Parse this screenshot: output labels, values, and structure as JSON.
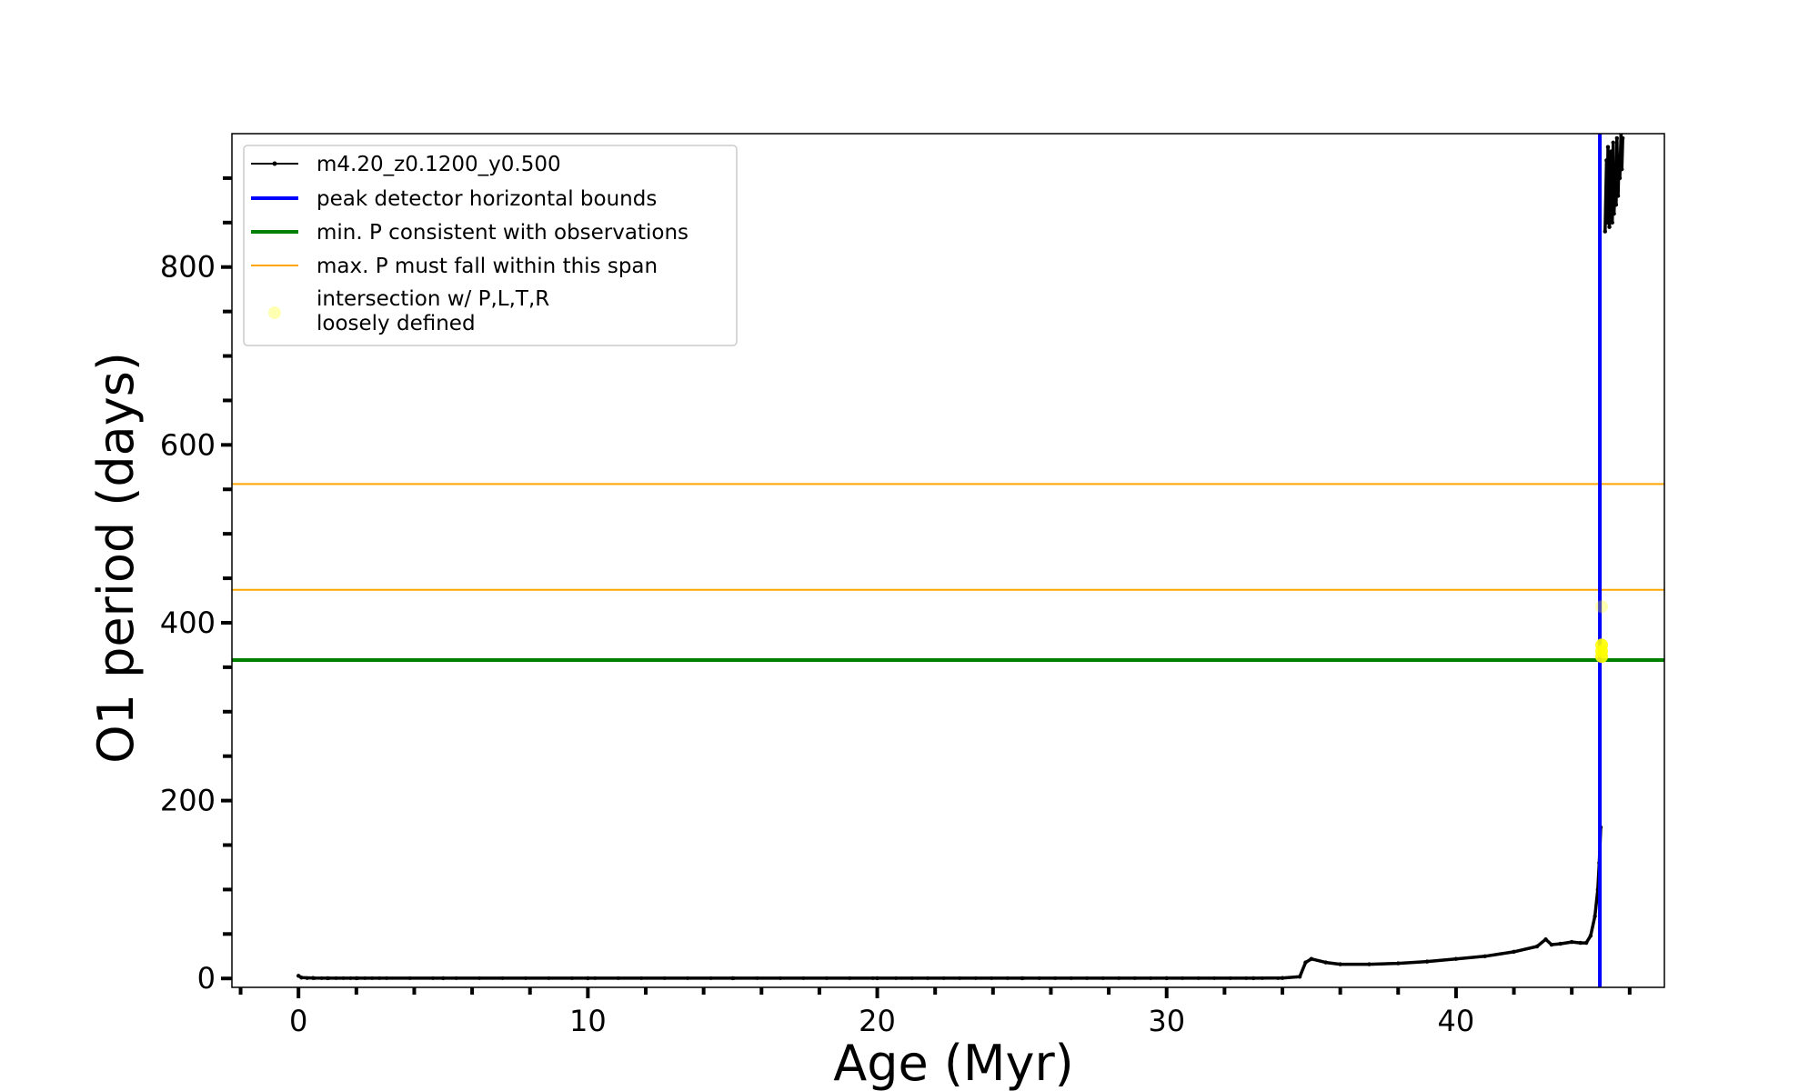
{
  "chart_data": {
    "type": "line",
    "title": "",
    "xlabel": "Age (Myr)",
    "ylabel": "O1 period (days)",
    "xlim": [
      -2.3,
      47.2
    ],
    "ylim": [
      -10,
      950
    ],
    "xticks_major": [
      0,
      10,
      20,
      30,
      40
    ],
    "xtick_labels": [
      "0",
      "10",
      "20",
      "30",
      "40"
    ],
    "xticks_minor": [
      -2,
      2,
      4,
      6,
      8,
      12,
      14,
      16,
      18,
      22,
      24,
      26,
      28,
      32,
      34,
      36,
      38,
      42,
      44,
      46
    ],
    "yticks_major": [
      0,
      200,
      400,
      600,
      800
    ],
    "ytick_labels": [
      "0",
      "200",
      "400",
      "600",
      "800"
    ],
    "yticks_minor": [
      50,
      100,
      150,
      250,
      300,
      350,
      450,
      500,
      550,
      650,
      700,
      750,
      850,
      900
    ],
    "grid": false,
    "legend_position": "top-left",
    "series": [
      {
        "name": "m4.20_z0.1200_y0.500",
        "color": "#000000",
        "style": "line-with-small-markers",
        "x": [
          0.0,
          0.1,
          0.5,
          1.0,
          2.0,
          5.0,
          10.0,
          15.0,
          20.0,
          25.0,
          30.0,
          33.0,
          34.0,
          34.6,
          34.8,
          35.0,
          35.5,
          36.0,
          37.0,
          38.0,
          39.0,
          40.0,
          41.0,
          42.0,
          42.8,
          43.1,
          43.3,
          43.6,
          44.0,
          44.3,
          44.5,
          44.65,
          44.8,
          44.9,
          44.95,
          45.0
        ],
        "y": [
          3,
          1,
          0.5,
          0.3,
          0.3,
          0.3,
          0.3,
          0.3,
          0.3,
          0.3,
          0.3,
          0.3,
          0.5,
          2,
          18,
          22,
          18,
          16,
          16,
          17,
          19,
          22,
          25,
          30,
          36,
          44,
          38,
          39,
          41,
          40,
          40,
          48,
          70,
          100,
          130,
          170
        ]
      },
      {
        "name": "",
        "color": "#000000",
        "style": "line-with-small-markers",
        "x": [
          45.15,
          45.2,
          45.22,
          45.25,
          45.3,
          45.33,
          45.36,
          45.4,
          45.43,
          45.46,
          45.5,
          45.53,
          45.56,
          45.6,
          45.63,
          45.66,
          45.7,
          45.73,
          45.76
        ],
        "y": [
          840,
          920,
          850,
          935,
          845,
          880,
          930,
          850,
          940,
          860,
          900,
          870,
          945,
          880,
          920,
          900,
          950,
          910,
          945
        ]
      }
    ],
    "hlines": [
      {
        "name": "min. P consistent with observations",
        "y": 358,
        "color": "#008000",
        "width": 4
      },
      {
        "name": "max. P must fall within this span",
        "y": 556,
        "color": "#ffa500",
        "width": 2
      },
      {
        "name": "",
        "y": 437,
        "color": "#ffa500",
        "width": 2
      }
    ],
    "vlines": [
      {
        "name": "peak detector horizontal bounds",
        "x": 44.97,
        "color": "#0000ff",
        "width": 4
      }
    ],
    "scatter": {
      "name": "intersection w/ P,L,T,R\nloosely defined",
      "color": "#ffff00",
      "points": [
        {
          "x": 44.97,
          "y": 418,
          "alpha": 0.3
        },
        {
          "x": 44.97,
          "y": 375,
          "alpha": 0.9
        },
        {
          "x": 44.97,
          "y": 368,
          "alpha": 0.9
        },
        {
          "x": 44.97,
          "y": 362,
          "alpha": 0.9
        }
      ]
    },
    "legend": [
      {
        "label": "m4.20_z0.1200_y0.500",
        "kind": "line-marker",
        "color": "#000000"
      },
      {
        "label": "peak detector horizontal bounds",
        "kind": "line",
        "color": "#0000ff",
        "width": 4
      },
      {
        "label": "min. P consistent with observations",
        "kind": "line",
        "color": "#008000",
        "width": 4
      },
      {
        "label": "max. P must fall within this span",
        "kind": "line",
        "color": "#ffa500",
        "width": 2
      },
      {
        "label": "intersection w/ P,L,T,R",
        "label2": "loosely defined",
        "kind": "dot",
        "color": "#ffff00",
        "alpha": 0.3
      }
    ]
  }
}
